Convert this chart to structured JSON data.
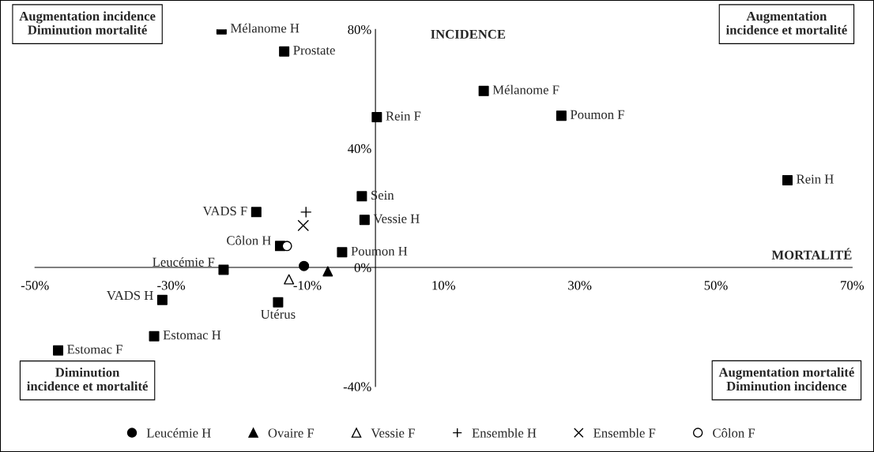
{
  "chart_data": {
    "type": "scatter",
    "xlabel": "MORTALITÉ",
    "ylabel": "INCIDENCE",
    "xlim": [
      -50,
      70
    ],
    "ylim": [
      -40,
      80
    ],
    "xticks": [
      {
        "value": -50,
        "label": "-50%"
      },
      {
        "value": -30,
        "label": "-30%"
      },
      {
        "value": -10,
        "label": "-10%"
      },
      {
        "value": 10,
        "label": "10%"
      },
      {
        "value": 30,
        "label": "30%"
      },
      {
        "value": 50,
        "label": "50%"
      },
      {
        "value": 70,
        "label": "70%"
      }
    ],
    "yticks": [
      {
        "value": -40,
        "label": "-40%"
      },
      {
        "value": 0,
        "label": "0%"
      },
      {
        "value": 40,
        "label": "40%"
      },
      {
        "value": 80,
        "label": "80%"
      }
    ],
    "grid": false,
    "legend": "bottom",
    "series": [
      {
        "color": "#000000",
        "marker": "square",
        "x": [
          -22.6,
          -13.4,
          15.9,
          0.2,
          27.3,
          60.5,
          -2.0,
          -17.5,
          -1.6,
          -14.0,
          -4.9,
          -22.3,
          -31.3,
          -14.3,
          -32.5,
          -46.6
        ],
        "values": [
          80,
          72.6,
          59.3,
          50.5,
          51,
          29.3,
          23.9,
          18.6,
          16,
          7.2,
          5.1,
          -0.8,
          -10.9,
          -11.7,
          -23.1,
          -27.9
        ]
      },
      {
        "name": "Leucémie H",
        "color": "#000000",
        "marker": "circle",
        "x": [
          -10.5
        ],
        "values": [
          0.5
        ]
      },
      {
        "name": "Ovaire F",
        "color": "#000000",
        "marker": "triangle",
        "x": [
          -7.0
        ],
        "values": [
          -1.3
        ]
      },
      {
        "name": "Vessie F",
        "color": "#ffffff",
        "marker": "triangle",
        "x": [
          -12.7
        ],
        "values": [
          -4
        ]
      },
      {
        "name": "Ensemble H",
        "color": "#000000",
        "marker": "plus",
        "x": [
          -10.2
        ],
        "values": [
          18.6
        ]
      },
      {
        "name": "Ensemble F",
        "color": "#000000",
        "marker": "cross",
        "x": [
          -10.6
        ],
        "values": [
          14.1
        ]
      },
      {
        "name": "Côlon F",
        "color": "#ffffff",
        "marker": "circle",
        "x": [
          -13.0
        ],
        "values": [
          7.2
        ]
      }
    ],
    "annotations": [
      {
        "text": "Mélanome H",
        "x": -22.6,
        "y": 80
      },
      {
        "text": "Prostate",
        "x": -13.4,
        "y": 72.6
      },
      {
        "text": "Mélanome F",
        "x": 15.9,
        "y": 59.3
      },
      {
        "text": "Rein F",
        "x": 0.2,
        "y": 50.5
      },
      {
        "text": "Poumon F",
        "x": 27.3,
        "y": 51
      },
      {
        "text": "Rein H",
        "x": 60.5,
        "y": 29.3
      },
      {
        "text": "Sein",
        "x": -2.0,
        "y": 23.9
      },
      {
        "text": "VADS F",
        "x": -17.5,
        "y": 18.6
      },
      {
        "text": "Vessie H",
        "x": -1.6,
        "y": 16
      },
      {
        "text": "Côlon H",
        "x": -14.0,
        "y": 7.2
      },
      {
        "text": "Poumon H",
        "x": -4.9,
        "y": 5.1
      },
      {
        "text": "Leucémie F",
        "x": -22.3,
        "y": -0.8
      },
      {
        "text": "VADS H",
        "x": -31.3,
        "y": -10.9
      },
      {
        "text": "Utérus",
        "x": -14.3,
        "y": -11.7
      },
      {
        "text": "Estomac H",
        "x": -32.5,
        "y": -23.1
      },
      {
        "text": "Estomac F",
        "x": -46.6,
        "y": -27.9
      },
      "Augmentation incidence\nDiminution mortalité",
      "Augmentation\nincidence et mortalité",
      "Diminution\nincidence et mortalité",
      "Augmentation mortalité\nDiminution incidence"
    ]
  }
}
